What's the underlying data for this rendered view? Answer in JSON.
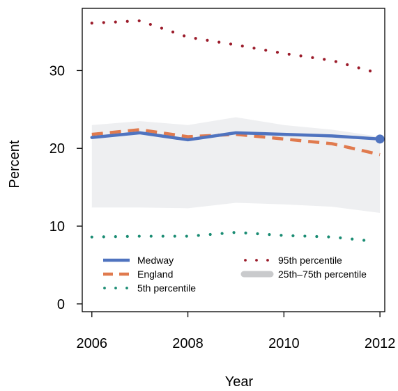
{
  "chart_data": {
    "type": "line",
    "title": "",
    "xlabel": "Year",
    "ylabel": "Percent",
    "xlim": [
      2005.8,
      2012.1
    ],
    "ylim": [
      -1,
      38
    ],
    "xticks": [
      2006,
      2008,
      2010,
      2012
    ],
    "yticks": [
      0,
      10,
      20,
      30
    ],
    "grid": false,
    "legend_position": "bottom-inside",
    "series": [
      {
        "name": "Medway",
        "style": "solid",
        "color": "#4F73BF",
        "x": [
          2006,
          2007,
          2008,
          2009,
          2010,
          2011,
          2012
        ],
        "y": [
          21.4,
          22.0,
          21.1,
          22.0,
          21.8,
          21.6,
          21.2
        ]
      },
      {
        "name": "England",
        "style": "dashed",
        "color": "#E07A4E",
        "x": [
          2006,
          2007,
          2008,
          2009,
          2010,
          2011,
          2012
        ],
        "y": [
          21.8,
          22.4,
          21.5,
          21.8,
          21.2,
          20.6,
          19.2
        ]
      },
      {
        "name": "5th percentile",
        "style": "dotted",
        "color": "#1A8C73",
        "x": [
          2006,
          2007,
          2008,
          2009,
          2010,
          2011,
          2011.8
        ],
        "y": [
          8.6,
          8.7,
          8.7,
          9.2,
          8.8,
          8.6,
          8.1
        ]
      },
      {
        "name": "95th percentile",
        "style": "dotted",
        "color": "#9B1B2A",
        "x": [
          2006,
          2007,
          2008,
          2009,
          2010,
          2011,
          2012
        ],
        "y": [
          36.1,
          36.4,
          34.3,
          33.3,
          32.2,
          31.3,
          29.6
        ]
      },
      {
        "name": "25th–75th percentile",
        "style": "band",
        "color": "#EEEFF1",
        "x": [
          2006,
          2007,
          2008,
          2009,
          2010,
          2011,
          2012
        ],
        "low": [
          12.4,
          12.4,
          12.3,
          13.0,
          12.8,
          12.5,
          11.7
        ],
        "high": [
          23.0,
          23.5,
          23.0,
          24.0,
          23.0,
          22.4,
          21.5
        ]
      }
    ],
    "legend": [
      {
        "label": "Medway",
        "style": "solid",
        "color": "#4F73BF"
      },
      {
        "label": "England",
        "style": "dashed",
        "color": "#E07A4E"
      },
      {
        "label": "5th percentile",
        "style": "dotted",
        "color": "#1A8C73"
      },
      {
        "label": "95th percentile",
        "style": "dotted",
        "color": "#9B1B2A"
      },
      {
        "label": "25th–75th percentile",
        "style": "band",
        "color": "#C9CACC"
      }
    ],
    "highlight_point": {
      "series": "Medway",
      "x": 2012,
      "y": 21.2
    }
  }
}
